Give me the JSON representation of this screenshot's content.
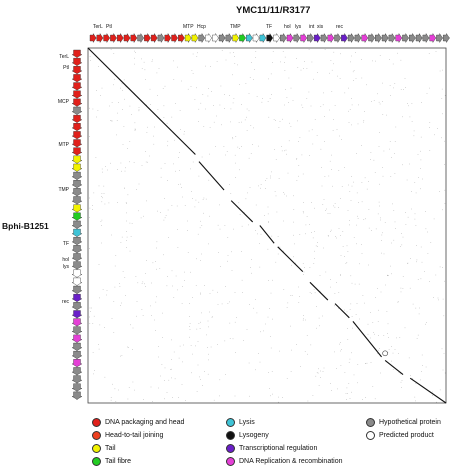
{
  "top_genome": {
    "title": "YMC11/11/R3177",
    "labels": [
      "TerL",
      "Ptl",
      "MTP",
      "Hcp",
      "TMP",
      "TF",
      "hol",
      "lys",
      "int",
      "xis",
      "rec"
    ],
    "colors": [
      "red",
      "red",
      "red",
      "red",
      "red",
      "red",
      "red",
      "gray",
      "red",
      "red",
      "gray",
      "red",
      "red",
      "red",
      "yellow",
      "yellow",
      "gray",
      "white",
      "white",
      "gray",
      "gray",
      "yellow",
      "green",
      "cyan",
      "white",
      "cyan",
      "black",
      "white",
      "gray",
      "magenta",
      "gray",
      "magenta",
      "gray",
      "purple",
      "gray",
      "magenta",
      "gray",
      "purple",
      "gray",
      "gray",
      "magenta",
      "gray",
      "gray",
      "gray",
      "gray",
      "magenta",
      "gray",
      "gray",
      "gray",
      "gray",
      "magenta",
      "gray",
      "gray"
    ]
  },
  "left_genome": {
    "title": "Bphi-B1251",
    "labels": [
      "TerL",
      "Ptl",
      "MCP",
      "MTP",
      "TMP",
      "TF",
      "hol",
      "lys",
      "rec"
    ],
    "colors": [
      "red",
      "red",
      "red",
      "red",
      "red",
      "red",
      "red",
      "gray",
      "red",
      "red",
      "red",
      "red",
      "red",
      "yellow",
      "yellow",
      "gray",
      "gray",
      "gray",
      "gray",
      "yellow",
      "green",
      "gray",
      "cyan",
      "gray",
      "gray",
      "gray",
      "gray",
      "white",
      "white",
      "gray",
      "purple",
      "gray",
      "purple",
      "magenta",
      "gray",
      "magenta",
      "gray",
      "gray",
      "magenta",
      "gray",
      "gray",
      "gray",
      "gray"
    ]
  },
  "palette": {
    "red": "#e0201b",
    "yellow": "#f2f200",
    "green": "#22cc22",
    "cyan": "#3fc3d6",
    "black": "#111111",
    "purple": "#6a1fc8",
    "magenta": "#e43fd6",
    "gray": "#8a8a8a",
    "white": "#ffffff"
  },
  "legend": [
    {
      "label": "DNA packaging and head",
      "color": "#e0201b"
    },
    {
      "label": "Head-to-tail joining",
      "color": "#ee4020"
    },
    {
      "label": "Tail",
      "color": "#f2f200"
    },
    {
      "label": "Tail fibre",
      "color": "#22cc22"
    },
    {
      "label": "Lysis",
      "color": "#3fc3d6"
    },
    {
      "label": "Lysogeny",
      "color": "#111111"
    },
    {
      "label": "Transcriptional regulation",
      "color": "#6a1fc8"
    },
    {
      "label": "DNA Replication & recombination",
      "color": "#e43fd6"
    },
    {
      "label": "Hypothetical protein",
      "color": "#8a8a8a"
    },
    {
      "label": "Predicted product",
      "color": "#ffffff"
    }
  ],
  "dotplot": {
    "segments": [
      [
        0.0,
        0.0,
        0.3,
        0.3
      ],
      [
        0.31,
        0.32,
        0.38,
        0.4
      ],
      [
        0.4,
        0.43,
        0.46,
        0.49
      ],
      [
        0.48,
        0.5,
        0.52,
        0.55
      ],
      [
        0.53,
        0.56,
        0.6,
        0.63
      ],
      [
        0.62,
        0.66,
        0.67,
        0.71
      ],
      [
        0.69,
        0.72,
        0.73,
        0.76
      ],
      [
        0.74,
        0.77,
        0.82,
        0.87
      ],
      [
        0.83,
        0.88,
        0.88,
        0.92
      ],
      [
        0.9,
        0.93,
        1.0,
        1.0
      ]
    ]
  }
}
